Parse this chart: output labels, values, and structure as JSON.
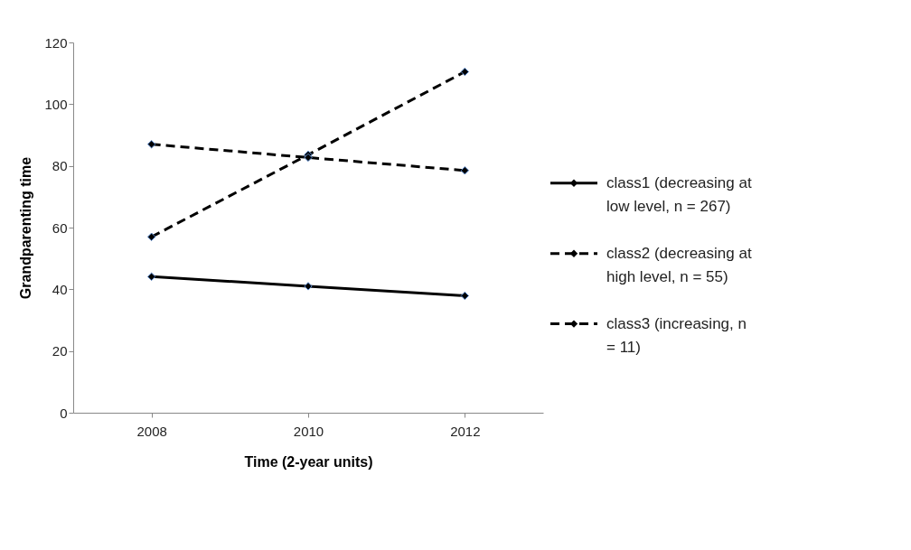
{
  "chart_data": {
    "type": "line",
    "xlabel": "Time (2-year units)",
    "ylabel": "Grandparenting time",
    "categories": [
      "2008",
      "2010",
      "2012"
    ],
    "series": [
      {
        "name": "class1 (decreasing at low level, n = 267)",
        "color": "#000000",
        "line_style": "solid",
        "values": [
          44.1,
          41.0,
          37.9
        ]
      },
      {
        "name": "class2 (decreasing at high level, n = 55)",
        "color": "#000000",
        "line_style": "dashed",
        "values": [
          87.0,
          82.7,
          78.5
        ]
      },
      {
        "name": "class3 (increasing, n = 11)",
        "color": "#000000",
        "line_style": "dashed",
        "values": [
          57.0,
          83.6,
          110.5
        ]
      }
    ],
    "ylim": [
      0,
      120
    ],
    "yticks": [
      0,
      20,
      40,
      60,
      80,
      100,
      120
    ],
    "grid": false,
    "legend": "right",
    "marker": "diamond"
  }
}
